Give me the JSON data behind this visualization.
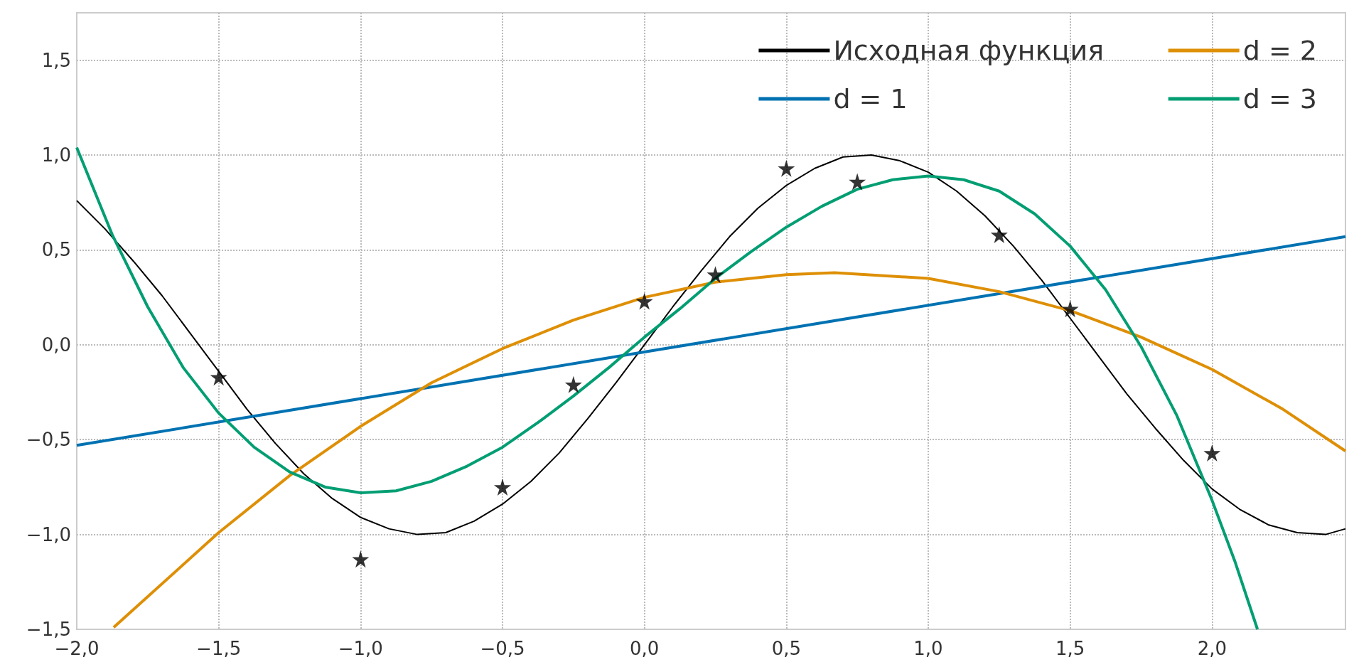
{
  "chart_data": {
    "type": "line",
    "xlim": [
      -2,
      2.47
    ],
    "ylim": [
      -1.5,
      1.75
    ],
    "xticks": [
      {
        "value": -2,
        "label": "−2,0"
      },
      {
        "value": -1.5,
        "label": "−1,5"
      },
      {
        "value": -1,
        "label": "−1,0"
      },
      {
        "value": -0.5,
        "label": "−0,5"
      },
      {
        "value": 0,
        "label": "0,0"
      },
      {
        "value": 0.5,
        "label": "0,5"
      },
      {
        "value": 1,
        "label": "1,0"
      },
      {
        "value": 1.5,
        "label": "1,5"
      },
      {
        "value": 2,
        "label": "2,0"
      }
    ],
    "yticks": [
      {
        "value": -1.5,
        "label": "−1,5"
      },
      {
        "value": -1,
        "label": "−1,0"
      },
      {
        "value": -0.5,
        "label": "−0,5"
      },
      {
        "value": 0,
        "label": "0,0"
      },
      {
        "value": 0.5,
        "label": "0,5"
      },
      {
        "value": 1,
        "label": "1,0"
      },
      {
        "value": 1.5,
        "label": "1,5"
      }
    ],
    "grid": true,
    "legend": "top right",
    "line_style": "solid",
    "series": [
      {
        "name": "Исходная функция",
        "color": "#000000",
        "x": [
          -2,
          -1.9,
          -1.8,
          -1.7,
          -1.6,
          -1.5,
          -1.4,
          -1.3,
          -1.2,
          -1.1,
          -1,
          -0.9,
          -0.8,
          -0.7,
          -0.6,
          -0.5,
          -0.4,
          -0.3,
          -0.2,
          -0.1,
          0,
          0.1,
          0.2,
          0.3,
          0.4,
          0.5,
          0.6,
          0.7,
          0.8,
          0.9,
          1,
          1.1,
          1.2,
          1.3,
          1.4,
          1.5,
          1.6,
          1.7,
          1.8,
          1.9,
          2,
          2.1,
          2.2,
          2.3,
          2.4,
          2.47
        ],
        "values": [
          0.76,
          0.61,
          0.44,
          0.26,
          0.06,
          -0.14,
          -0.34,
          -0.52,
          -0.68,
          -0.81,
          -0.91,
          -0.97,
          -1.0,
          -0.99,
          -0.93,
          -0.84,
          -0.72,
          -0.57,
          -0.39,
          -0.2,
          0,
          0.2,
          0.39,
          0.57,
          0.72,
          0.84,
          0.93,
          0.99,
          1.0,
          0.97,
          0.91,
          0.81,
          0.68,
          0.52,
          0.34,
          0.14,
          -0.06,
          -0.26,
          -0.44,
          -0.61,
          -0.76,
          -0.87,
          -0.95,
          -0.99,
          -1.0,
          -0.97
        ]
      },
      {
        "name": "d = 1",
        "color": "#0072b2",
        "x": [
          -2,
          2.47
        ],
        "values": [
          -0.53,
          0.57
        ]
      },
      {
        "name": "d = 2",
        "color": "#de8f05",
        "x": [
          -1.87,
          -1.5,
          -1.25,
          -1,
          -0.75,
          -0.5,
          -0.25,
          0,
          0.25,
          0.5,
          0.67,
          1,
          1.25,
          1.5,
          1.75,
          2,
          2.25,
          2.47
        ],
        "values": [
          -1.49,
          -0.99,
          -0.69,
          -0.43,
          -0.2,
          -0.02,
          0.13,
          0.25,
          0.33,
          0.37,
          0.38,
          0.35,
          0.28,
          0.18,
          0.04,
          -0.13,
          -0.34,
          -0.56
        ]
      },
      {
        "name": "d = 3",
        "color": "#029e73",
        "x": [
          -2,
          -1.875,
          -1.75,
          -1.625,
          -1.5,
          -1.375,
          -1.25,
          -1.125,
          -1,
          -0.875,
          -0.75,
          -0.625,
          -0.5,
          -0.375,
          -0.25,
          -0.125,
          0,
          0.125,
          0.25,
          0.375,
          0.5,
          0.625,
          0.75,
          0.875,
          1,
          1.125,
          1.25,
          1.375,
          1.5,
          1.625,
          1.75,
          1.875,
          2,
          2.08,
          2.16
        ],
        "values": [
          1.04,
          0.58,
          0.2,
          -0.12,
          -0.36,
          -0.54,
          -0.67,
          -0.75,
          -0.78,
          -0.77,
          -0.72,
          -0.64,
          -0.54,
          -0.41,
          -0.27,
          -0.12,
          0.04,
          0.19,
          0.35,
          0.49,
          0.62,
          0.73,
          0.82,
          0.87,
          0.89,
          0.87,
          0.81,
          0.69,
          0.52,
          0.29,
          -0.01,
          -0.37,
          -0.82,
          -1.14,
          -1.5
        ]
      },
      {
        "color": "#000000",
        "type": "scatter",
        "marker": "star",
        "x": [
          -1.5,
          -1,
          -0.5,
          -0.25,
          0,
          0.25,
          0.5,
          0.75,
          1.25,
          1.5,
          2
        ],
        "values": [
          -0.17,
          -1.13,
          -0.75,
          -0.21,
          0.23,
          0.37,
          0.93,
          0.86,
          0.58,
          0.19,
          -0.57
        ]
      }
    ]
  }
}
